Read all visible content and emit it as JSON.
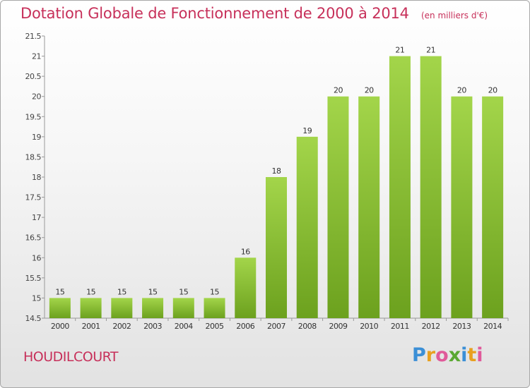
{
  "header": {
    "title": "Dotation Globale de Fonctionnement de 2000 à 2014",
    "unit": "(en milliers d'€)"
  },
  "footer": {
    "commune": "HOUDILCOURT",
    "logo_text": "Proxiti"
  },
  "colors": {
    "title": "#c7305a",
    "bar_light": "#a3d54a",
    "bar_dark": "#6ca11e"
  },
  "chart_data": {
    "type": "bar",
    "title": "Dotation Globale de Fonctionnement de 2000 à 2014",
    "subtitle": "(en milliers d'€)",
    "xlabel": "",
    "ylabel": "",
    "categories": [
      "2000",
      "2001",
      "2002",
      "2003",
      "2004",
      "2005",
      "2006",
      "2007",
      "2008",
      "2009",
      "2010",
      "2011",
      "2012",
      "2013",
      "2014"
    ],
    "values": [
      15,
      15,
      15,
      15,
      15,
      15,
      16,
      18,
      19,
      20,
      20,
      21,
      21,
      20,
      20
    ],
    "data_labels": [
      "15",
      "15",
      "15",
      "15",
      "15",
      "15",
      "16",
      "18",
      "19",
      "20",
      "20",
      "21",
      "21",
      "20",
      "20"
    ],
    "ylim": [
      14.5,
      21.5
    ],
    "yticks": [
      14.5,
      15,
      15.5,
      16,
      16.5,
      17,
      17.5,
      18,
      18.5,
      19,
      19.5,
      20,
      20.5,
      21,
      21.5
    ],
    "ytick_labels": [
      "14.5",
      "15",
      "15.5",
      "16",
      "16.5",
      "17",
      "17.5",
      "18",
      "18.5",
      "19",
      "19.5",
      "20",
      "20.5",
      "21",
      "21.5"
    ],
    "grid": false,
    "legend": "none"
  }
}
